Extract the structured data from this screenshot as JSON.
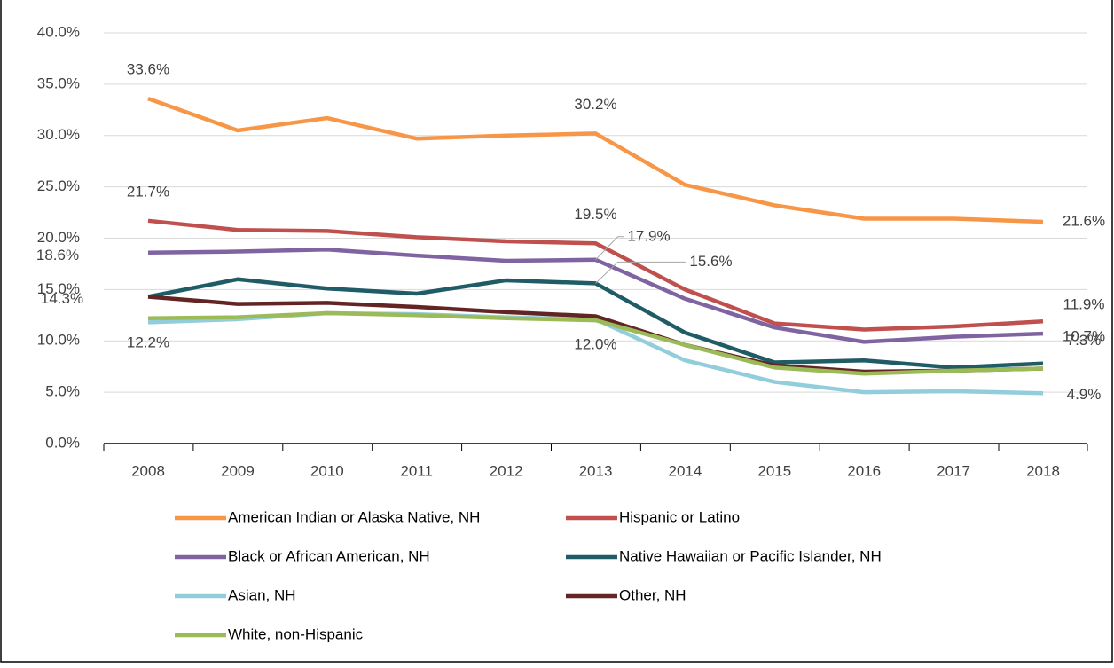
{
  "chart_data": {
    "type": "line",
    "categories": [
      "2008",
      "2009",
      "2010",
      "2011",
      "2012",
      "2013",
      "2014",
      "2015",
      "2016",
      "2017",
      "2018"
    ],
    "ylim": [
      0,
      40
    ],
    "yticks": [
      {
        "value": 0,
        "label": "0.0%"
      },
      {
        "value": 5,
        "label": "5.0%"
      },
      {
        "value": 10,
        "label": "10.0%"
      },
      {
        "value": 15,
        "label": "15.0%"
      },
      {
        "value": 20,
        "label": "20.0%"
      },
      {
        "value": 25,
        "label": "25.0%"
      },
      {
        "value": 30,
        "label": "30.0%"
      },
      {
        "value": 35,
        "label": "35.0%"
      },
      {
        "value": 40,
        "label": "40.0%"
      }
    ],
    "grid": true,
    "legend": "bottom",
    "series": [
      {
        "name": "American Indian or Alaska Native, NH",
        "color": "#f79646",
        "values": [
          33.6,
          30.5,
          31.7,
          29.7,
          30.0,
          30.2,
          25.2,
          23.2,
          21.9,
          21.9,
          21.6
        ],
        "value_labels": [
          "33.6%",
          null,
          null,
          null,
          null,
          "30.2%",
          null,
          null,
          null,
          null,
          "21.6%"
        ]
      },
      {
        "name": "Hispanic or Latino",
        "color": "#c0504d",
        "values": [
          21.7,
          20.8,
          20.7,
          20.1,
          19.7,
          19.5,
          15.0,
          11.7,
          11.1,
          11.4,
          11.9
        ],
        "value_labels": [
          "21.7%",
          null,
          null,
          null,
          null,
          "19.5%",
          null,
          null,
          null,
          null,
          "11.9%"
        ]
      },
      {
        "name": "Black or African American, NH",
        "color": "#8064a2",
        "values": [
          18.6,
          18.7,
          18.9,
          18.3,
          17.8,
          17.9,
          14.1,
          11.3,
          9.9,
          10.4,
          10.7
        ],
        "value_labels": [
          "18.6%",
          null,
          null,
          null,
          null,
          "17.9%",
          null,
          null,
          null,
          null,
          "10.7%"
        ]
      },
      {
        "name": "Native Hawaiian or Pacific Islander, NH",
        "color": "#1f5c66",
        "values": [
          14.3,
          16.0,
          15.1,
          14.6,
          15.9,
          15.6,
          10.8,
          7.9,
          8.1,
          7.4,
          7.8
        ],
        "value_labels": [
          "14.3%",
          null,
          null,
          null,
          null,
          "15.6%",
          null,
          null,
          null,
          null,
          null
        ]
      },
      {
        "name": "Asian, NH",
        "color": "#92cddc",
        "values": [
          11.8,
          12.1,
          12.7,
          12.6,
          12.3,
          12.1,
          8.1,
          6.0,
          5.0,
          5.1,
          4.9
        ],
        "value_labels": [
          null,
          null,
          null,
          null,
          null,
          null,
          null,
          null,
          null,
          null,
          "4.9%"
        ]
      },
      {
        "name": "Other, NH",
        "color": "#632523",
        "values": [
          14.3,
          13.6,
          13.7,
          13.3,
          12.8,
          12.4,
          9.6,
          7.6,
          7.0,
          7.1,
          7.3
        ],
        "value_labels": [
          null,
          null,
          null,
          null,
          null,
          null,
          null,
          null,
          null,
          null,
          null
        ]
      },
      {
        "name": "White, non-Hispanic",
        "color": "#9bbb59",
        "values": [
          12.2,
          12.3,
          12.7,
          12.5,
          12.2,
          12.0,
          9.6,
          7.4,
          6.8,
          7.1,
          7.3
        ],
        "value_labels": [
          "12.2%",
          null,
          null,
          null,
          null,
          "12.0%",
          null,
          null,
          null,
          null,
          "7.3%"
        ]
      }
    ]
  }
}
